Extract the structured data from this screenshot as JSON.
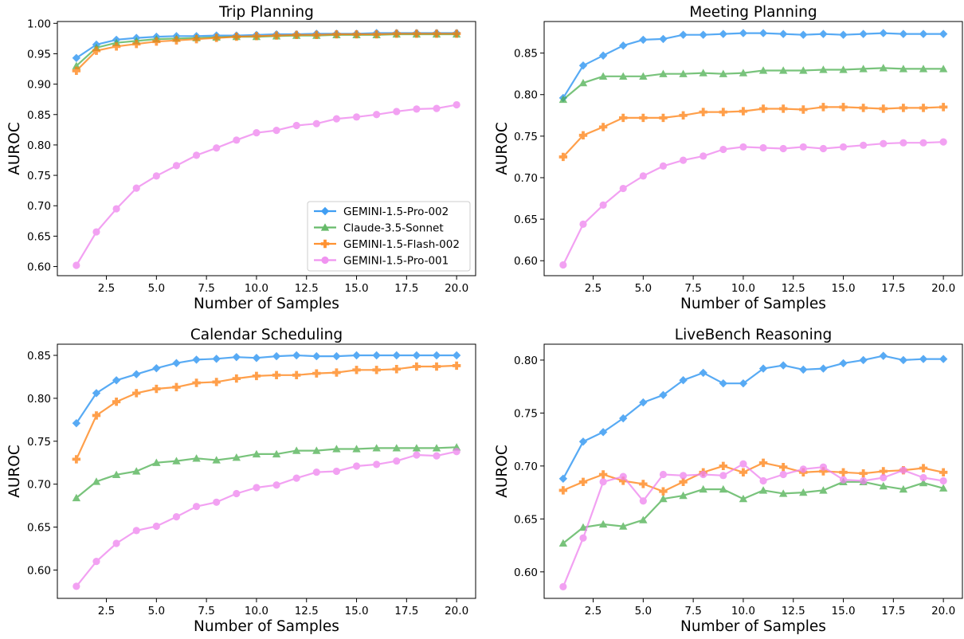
{
  "figure": {
    "background": "#ffffff"
  },
  "series_styles": [
    {
      "name": "GEMINI-1.5-Pro-002",
      "color": "#1f8ef1",
      "marker": "diamond"
    },
    {
      "name": "Claude-3.5-Sonnet",
      "color": "#4caf50",
      "marker": "triangle"
    },
    {
      "name": "GEMINI-1.5-Flash-002",
      "color": "#ff7f0e",
      "marker": "plus"
    },
    {
      "name": "GEMINI-1.5-Pro-001",
      "color": "#ee82ee",
      "marker": "circle"
    }
  ],
  "chart_data": [
    {
      "type": "line",
      "title": "Trip Planning",
      "xlabel": "Number of Samples",
      "ylabel": "AUROC",
      "xlim": [
        0.05,
        20.95
      ],
      "ylim": [
        0.585,
        1.003
      ],
      "xticks": [
        2.5,
        5.0,
        7.5,
        10.0,
        12.5,
        15.0,
        17.5,
        20.0
      ],
      "xtick_labels": [
        "2.5",
        "5.0",
        "7.5",
        "10.0",
        "12.5",
        "15.0",
        "17.5",
        "20.0"
      ],
      "yticks": [
        0.6,
        0.65,
        0.7,
        0.75,
        0.8,
        0.85,
        0.9,
        0.95,
        1.0
      ],
      "ytick_labels": [
        "0.60",
        "0.65",
        "0.70",
        "0.75",
        "0.80",
        "0.85",
        "0.90",
        "0.95",
        "1.00"
      ],
      "grid": false,
      "legend": "lower-right",
      "x": [
        1,
        2,
        3,
        4,
        5,
        6,
        7,
        8,
        9,
        10,
        11,
        12,
        13,
        14,
        15,
        16,
        17,
        18,
        19,
        20
      ],
      "series": [
        {
          "name": "GEMINI-1.5-Pro-002",
          "values": [
            0.943,
            0.965,
            0.973,
            0.976,
            0.978,
            0.979,
            0.979,
            0.98,
            0.98,
            0.981,
            0.982,
            0.982,
            0.983,
            0.983,
            0.983,
            0.984,
            0.984,
            0.984,
            0.984,
            0.984
          ]
        },
        {
          "name": "Claude-3.5-Sonnet",
          "values": [
            0.93,
            0.96,
            0.968,
            0.971,
            0.974,
            0.975,
            0.976,
            0.977,
            0.978,
            0.978,
            0.979,
            0.98,
            0.98,
            0.981,
            0.981,
            0.981,
            0.982,
            0.982,
            0.982,
            0.982
          ]
        },
        {
          "name": "GEMINI-1.5-Flash-002",
          "values": [
            0.922,
            0.955,
            0.962,
            0.966,
            0.97,
            0.972,
            0.974,
            0.976,
            0.978,
            0.979,
            0.98,
            0.981,
            0.981,
            0.982,
            0.982,
            0.982,
            0.983,
            0.983,
            0.983,
            0.983
          ]
        },
        {
          "name": "GEMINI-1.5-Pro-001",
          "values": [
            0.602,
            0.657,
            0.695,
            0.729,
            0.749,
            0.766,
            0.783,
            0.795,
            0.808,
            0.82,
            0.824,
            0.832,
            0.835,
            0.843,
            0.846,
            0.85,
            0.855,
            0.859,
            0.86,
            0.866
          ]
        }
      ]
    },
    {
      "type": "line",
      "title": "Meeting Planning",
      "xlabel": "Number of Samples",
      "ylabel": "AUROC",
      "xlim": [
        0.05,
        20.95
      ],
      "ylim": [
        0.582,
        0.888
      ],
      "xticks": [
        2.5,
        5.0,
        7.5,
        10.0,
        12.5,
        15.0,
        17.5,
        20.0
      ],
      "xtick_labels": [
        "2.5",
        "5.0",
        "7.5",
        "10.0",
        "12.5",
        "15.0",
        "17.5",
        "20.0"
      ],
      "yticks": [
        0.6,
        0.65,
        0.7,
        0.75,
        0.8,
        0.85
      ],
      "ytick_labels": [
        "0.60",
        "0.65",
        "0.70",
        "0.75",
        "0.80",
        "0.85"
      ],
      "grid": false,
      "legend": "none",
      "x": [
        1,
        2,
        3,
        4,
        5,
        6,
        7,
        8,
        9,
        10,
        11,
        12,
        13,
        14,
        15,
        16,
        17,
        18,
        19,
        20
      ],
      "series": [
        {
          "name": "GEMINI-1.5-Pro-002",
          "values": [
            0.796,
            0.835,
            0.847,
            0.859,
            0.866,
            0.867,
            0.872,
            0.872,
            0.873,
            0.874,
            0.874,
            0.873,
            0.872,
            0.873,
            0.872,
            0.873,
            0.874,
            0.873,
            0.873,
            0.873
          ]
        },
        {
          "name": "Claude-3.5-Sonnet",
          "values": [
            0.794,
            0.814,
            0.822,
            0.822,
            0.822,
            0.825,
            0.825,
            0.826,
            0.825,
            0.826,
            0.829,
            0.829,
            0.829,
            0.83,
            0.83,
            0.831,
            0.832,
            0.831,
            0.831,
            0.831
          ]
        },
        {
          "name": "GEMINI-1.5-Flash-002",
          "values": [
            0.725,
            0.751,
            0.761,
            0.772,
            0.772,
            0.772,
            0.775,
            0.779,
            0.779,
            0.78,
            0.783,
            0.783,
            0.782,
            0.785,
            0.785,
            0.784,
            0.783,
            0.784,
            0.784,
            0.785
          ]
        },
        {
          "name": "GEMINI-1.5-Pro-001",
          "values": [
            0.595,
            0.644,
            0.667,
            0.687,
            0.702,
            0.714,
            0.721,
            0.726,
            0.734,
            0.737,
            0.736,
            0.735,
            0.737,
            0.735,
            0.737,
            0.739,
            0.741,
            0.742,
            0.742,
            0.743
          ]
        }
      ]
    },
    {
      "type": "line",
      "title": "Calendar Scheduling",
      "xlabel": "Number of Samples",
      "ylabel": "AUROC",
      "xlim": [
        0.05,
        20.95
      ],
      "ylim": [
        0.567,
        0.863
      ],
      "xticks": [
        2.5,
        5.0,
        7.5,
        10.0,
        12.5,
        15.0,
        17.5,
        20.0
      ],
      "xtick_labels": [
        "2.5",
        "5.0",
        "7.5",
        "10.0",
        "12.5",
        "15.0",
        "17.5",
        "20.0"
      ],
      "yticks": [
        0.6,
        0.65,
        0.7,
        0.75,
        0.8,
        0.85
      ],
      "ytick_labels": [
        "0.60",
        "0.65",
        "0.70",
        "0.75",
        "0.80",
        "0.85"
      ],
      "grid": false,
      "legend": "none",
      "x": [
        1,
        2,
        3,
        4,
        5,
        6,
        7,
        8,
        9,
        10,
        11,
        12,
        13,
        14,
        15,
        16,
        17,
        18,
        19,
        20
      ],
      "series": [
        {
          "name": "GEMINI-1.5-Pro-002",
          "values": [
            0.771,
            0.806,
            0.821,
            0.828,
            0.835,
            0.841,
            0.845,
            0.846,
            0.848,
            0.847,
            0.849,
            0.85,
            0.849,
            0.849,
            0.85,
            0.85,
            0.85,
            0.85,
            0.85,
            0.85
          ]
        },
        {
          "name": "Claude-3.5-Sonnet",
          "values": [
            0.684,
            0.703,
            0.711,
            0.715,
            0.725,
            0.727,
            0.73,
            0.728,
            0.731,
            0.735,
            0.735,
            0.739,
            0.739,
            0.741,
            0.741,
            0.742,
            0.742,
            0.742,
            0.742,
            0.743
          ]
        },
        {
          "name": "GEMINI-1.5-Flash-002",
          "values": [
            0.729,
            0.78,
            0.796,
            0.806,
            0.811,
            0.813,
            0.818,
            0.819,
            0.823,
            0.826,
            0.827,
            0.827,
            0.829,
            0.83,
            0.833,
            0.833,
            0.834,
            0.837,
            0.837,
            0.838
          ]
        },
        {
          "name": "GEMINI-1.5-Pro-001",
          "values": [
            0.581,
            0.61,
            0.631,
            0.646,
            0.651,
            0.662,
            0.674,
            0.679,
            0.689,
            0.696,
            0.699,
            0.707,
            0.714,
            0.715,
            0.721,
            0.723,
            0.727,
            0.734,
            0.733,
            0.738
          ]
        }
      ]
    },
    {
      "type": "line",
      "title": "LiveBench Reasoning",
      "xlabel": "Number of Samples",
      "ylabel": "AUROC",
      "xlim": [
        0.05,
        20.95
      ],
      "ylim": [
        0.575,
        0.815
      ],
      "xticks": [
        2.5,
        5.0,
        7.5,
        10.0,
        12.5,
        15.0,
        17.5,
        20.0
      ],
      "xtick_labels": [
        "2.5",
        "5.0",
        "7.5",
        "10.0",
        "12.5",
        "15.0",
        "17.5",
        "20.0"
      ],
      "yticks": [
        0.6,
        0.65,
        0.7,
        0.75,
        0.8
      ],
      "ytick_labels": [
        "0.60",
        "0.65",
        "0.70",
        "0.75",
        "0.80"
      ],
      "grid": false,
      "legend": "none",
      "x": [
        1,
        2,
        3,
        4,
        5,
        6,
        7,
        8,
        9,
        10,
        11,
        12,
        13,
        14,
        15,
        16,
        17,
        18,
        19,
        20
      ],
      "series": [
        {
          "name": "GEMINI-1.5-Pro-002",
          "values": [
            0.688,
            0.723,
            0.732,
            0.745,
            0.76,
            0.767,
            0.781,
            0.788,
            0.778,
            0.778,
            0.792,
            0.795,
            0.791,
            0.792,
            0.797,
            0.8,
            0.804,
            0.8,
            0.801,
            0.801
          ]
        },
        {
          "name": "Claude-3.5-Sonnet",
          "values": [
            0.627,
            0.642,
            0.645,
            0.643,
            0.649,
            0.669,
            0.672,
            0.678,
            0.678,
            0.669,
            0.677,
            0.674,
            0.675,
            0.677,
            0.685,
            0.685,
            0.681,
            0.678,
            0.684,
            0.679
          ]
        },
        {
          "name": "GEMINI-1.5-Flash-002",
          "values": [
            0.677,
            0.685,
            0.692,
            0.686,
            0.683,
            0.676,
            0.685,
            0.694,
            0.7,
            0.694,
            0.703,
            0.699,
            0.694,
            0.695,
            0.694,
            0.693,
            0.695,
            0.696,
            0.698,
            0.694
          ]
        },
        {
          "name": "GEMINI-1.5-Pro-001",
          "values": [
            0.586,
            0.632,
            0.685,
            0.69,
            0.667,
            0.692,
            0.691,
            0.692,
            0.691,
            0.702,
            0.686,
            0.692,
            0.697,
            0.699,
            0.687,
            0.686,
            0.689,
            0.696,
            0.689,
            0.686
          ]
        }
      ]
    }
  ]
}
